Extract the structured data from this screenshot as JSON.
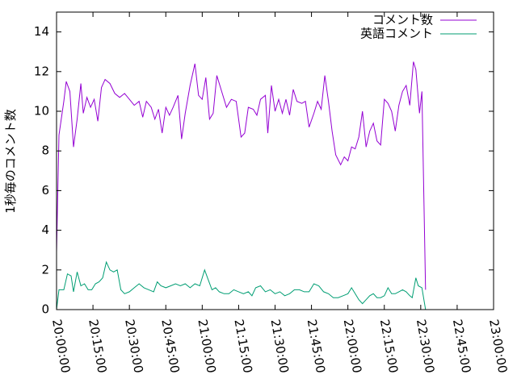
{
  "chart_data": {
    "type": "line",
    "ylabel": "1秒毎のコメント数",
    "xlabel": "",
    "ylim": [
      0,
      15
    ],
    "x_range": [
      "20:00:00",
      "23:00:00"
    ],
    "grid": false,
    "legend_position": "top-right",
    "y_ticks": [
      "0",
      "2",
      "4",
      "6",
      "8",
      "10",
      "12",
      "14"
    ],
    "x_ticks": [
      "20:00:00",
      "20:15:00",
      "20:30:00",
      "20:45:00",
      "21:00:00",
      "21:15:00",
      "21:30:00",
      "21:45:00",
      "22:00:00",
      "22:15:00",
      "22:30:00",
      "22:45:00",
      "23:00:00"
    ],
    "series": [
      {
        "name": "コメント数",
        "color": "#9400d3",
        "points": [
          [
            "20:00:00",
            2.9
          ],
          [
            "20:01:00",
            8.8
          ],
          [
            "20:03:00",
            10.5
          ],
          [
            "20:04:00",
            11.5
          ],
          [
            "20:05:30",
            11.0
          ],
          [
            "20:07:00",
            8.2
          ],
          [
            "20:08:30",
            9.6
          ],
          [
            "20:10:00",
            11.4
          ],
          [
            "20:11:00",
            9.9
          ],
          [
            "20:12:30",
            10.7
          ],
          [
            "20:14:00",
            10.2
          ],
          [
            "20:15:30",
            10.6
          ],
          [
            "20:17:00",
            9.5
          ],
          [
            "20:18:30",
            11.2
          ],
          [
            "20:20:00",
            11.6
          ],
          [
            "20:22:00",
            11.4
          ],
          [
            "20:24:00",
            10.9
          ],
          [
            "20:26:00",
            10.7
          ],
          [
            "20:28:00",
            10.9
          ],
          [
            "20:30:00",
            10.6
          ],
          [
            "20:32:00",
            10.3
          ],
          [
            "20:34:00",
            10.5
          ],
          [
            "20:35:30",
            9.7
          ],
          [
            "20:37:00",
            10.5
          ],
          [
            "20:39:00",
            10.2
          ],
          [
            "20:40:30",
            9.6
          ],
          [
            "20:42:00",
            10.1
          ],
          [
            "20:43:30",
            8.9
          ],
          [
            "20:45:00",
            10.2
          ],
          [
            "20:46:30",
            9.8
          ],
          [
            "20:48:00",
            10.2
          ],
          [
            "20:50:00",
            10.8
          ],
          [
            "20:51:30",
            8.6
          ],
          [
            "20:53:00",
            9.9
          ],
          [
            "20:55:00",
            11.3
          ],
          [
            "20:57:00",
            12.4
          ],
          [
            "20:58:30",
            10.8
          ],
          [
            "21:00:00",
            10.6
          ],
          [
            "21:01:30",
            11.7
          ],
          [
            "21:03:00",
            9.6
          ],
          [
            "21:04:30",
            9.9
          ],
          [
            "21:06:00",
            11.8
          ],
          [
            "21:08:00",
            11.0
          ],
          [
            "21:10:00",
            10.2
          ],
          [
            "21:12:00",
            10.6
          ],
          [
            "21:14:00",
            10.5
          ],
          [
            "21:16:00",
            8.7
          ],
          [
            "21:17:30",
            8.9
          ],
          [
            "21:19:00",
            10.2
          ],
          [
            "21:21:00",
            10.1
          ],
          [
            "21:22:30",
            9.8
          ],
          [
            "21:24:00",
            10.6
          ],
          [
            "21:26:00",
            10.8
          ],
          [
            "21:27:00",
            8.9
          ],
          [
            "21:28:30",
            11.3
          ],
          [
            "21:30:00",
            10.0
          ],
          [
            "21:31:30",
            10.6
          ],
          [
            "21:33:00",
            9.9
          ],
          [
            "21:34:30",
            10.6
          ],
          [
            "21:36:00",
            9.8
          ],
          [
            "21:37:30",
            11.1
          ],
          [
            "21:39:00",
            10.5
          ],
          [
            "21:41:00",
            10.4
          ],
          [
            "21:42:30",
            10.5
          ],
          [
            "21:44:00",
            9.2
          ],
          [
            "21:46:00",
            9.9
          ],
          [
            "21:47:30",
            10.5
          ],
          [
            "21:49:00",
            10.1
          ],
          [
            "21:50:30",
            11.8
          ],
          [
            "21:52:00",
            10.5
          ],
          [
            "21:53:30",
            9.0
          ],
          [
            "21:55:00",
            7.8
          ],
          [
            "21:57:00",
            7.3
          ],
          [
            "21:58:30",
            7.7
          ],
          [
            "22:00:00",
            7.5
          ],
          [
            "22:01:30",
            8.2
          ],
          [
            "22:03:00",
            8.1
          ],
          [
            "22:04:30",
            8.7
          ],
          [
            "22:06:00",
            10.0
          ],
          [
            "22:07:30",
            8.2
          ],
          [
            "22:09:00",
            9.0
          ],
          [
            "22:10:30",
            9.4
          ],
          [
            "22:12:00",
            8.5
          ],
          [
            "22:13:30",
            8.3
          ],
          [
            "22:15:00",
            10.6
          ],
          [
            "22:16:30",
            10.4
          ],
          [
            "22:18:00",
            10.0
          ],
          [
            "22:19:30",
            9.0
          ],
          [
            "22:21:00",
            10.3
          ],
          [
            "22:22:30",
            11.0
          ],
          [
            "22:24:00",
            11.3
          ],
          [
            "22:25:30",
            10.3
          ],
          [
            "22:27:00",
            12.5
          ],
          [
            "22:28:00",
            12.1
          ],
          [
            "22:29:30",
            9.9
          ],
          [
            "22:30:30",
            11.0
          ],
          [
            "22:32:00",
            1.0
          ]
        ]
      },
      {
        "name": "英語コメント",
        "color": "#009e73",
        "points": [
          [
            "20:00:00",
            0.0
          ],
          [
            "20:01:00",
            1.0
          ],
          [
            "20:03:00",
            1.0
          ],
          [
            "20:04:30",
            1.8
          ],
          [
            "20:06:00",
            1.7
          ],
          [
            "20:07:00",
            0.9
          ],
          [
            "20:08:30",
            1.9
          ],
          [
            "20:10:00",
            1.2
          ],
          [
            "20:11:30",
            1.3
          ],
          [
            "20:13:00",
            1.0
          ],
          [
            "20:14:30",
            1.0
          ],
          [
            "20:16:00",
            1.3
          ],
          [
            "20:17:30",
            1.4
          ],
          [
            "20:19:00",
            1.6
          ],
          [
            "20:20:30",
            2.4
          ],
          [
            "20:22:00",
            2.0
          ],
          [
            "20:23:30",
            1.9
          ],
          [
            "20:25:00",
            2.0
          ],
          [
            "20:26:30",
            1.0
          ],
          [
            "20:28:00",
            0.8
          ],
          [
            "20:30:00",
            0.9
          ],
          [
            "20:32:00",
            1.1
          ],
          [
            "20:34:00",
            1.3
          ],
          [
            "20:36:00",
            1.1
          ],
          [
            "20:38:00",
            1.0
          ],
          [
            "20:40:00",
            0.9
          ],
          [
            "20:41:30",
            1.4
          ],
          [
            "20:43:00",
            1.2
          ],
          [
            "20:45:00",
            1.1
          ],
          [
            "20:47:00",
            1.2
          ],
          [
            "20:49:00",
            1.3
          ],
          [
            "20:51:00",
            1.2
          ],
          [
            "20:53:00",
            1.3
          ],
          [
            "20:55:00",
            1.1
          ],
          [
            "20:57:00",
            1.3
          ],
          [
            "20:59:00",
            1.2
          ],
          [
            "21:01:00",
            2.0
          ],
          [
            "21:02:30",
            1.5
          ],
          [
            "21:04:00",
            1.0
          ],
          [
            "21:05:30",
            1.1
          ],
          [
            "21:07:00",
            0.9
          ],
          [
            "21:09:00",
            0.8
          ],
          [
            "21:11:00",
            0.8
          ],
          [
            "21:13:00",
            1.0
          ],
          [
            "21:15:00",
            0.9
          ],
          [
            "21:17:00",
            0.8
          ],
          [
            "21:19:00",
            0.9
          ],
          [
            "21:20:30",
            0.7
          ],
          [
            "21:22:00",
            1.1
          ],
          [
            "21:24:00",
            1.2
          ],
          [
            "21:26:00",
            0.9
          ],
          [
            "21:28:00",
            1.0
          ],
          [
            "21:30:00",
            0.8
          ],
          [
            "21:32:00",
            0.9
          ],
          [
            "21:34:00",
            0.7
          ],
          [
            "21:36:00",
            0.8
          ],
          [
            "21:38:00",
            1.0
          ],
          [
            "21:40:00",
            1.0
          ],
          [
            "21:42:00",
            0.9
          ],
          [
            "21:44:00",
            0.9
          ],
          [
            "21:46:00",
            1.3
          ],
          [
            "21:48:00",
            1.2
          ],
          [
            "21:50:00",
            0.9
          ],
          [
            "21:52:00",
            0.8
          ],
          [
            "21:54:00",
            0.6
          ],
          [
            "21:56:00",
            0.6
          ],
          [
            "21:58:00",
            0.7
          ],
          [
            "22:00:00",
            0.8
          ],
          [
            "22:01:30",
            1.1
          ],
          [
            "22:03:00",
            0.8
          ],
          [
            "22:04:30",
            0.5
          ],
          [
            "22:06:00",
            0.3
          ],
          [
            "22:07:30",
            0.5
          ],
          [
            "22:09:00",
            0.7
          ],
          [
            "22:10:30",
            0.8
          ],
          [
            "22:12:00",
            0.6
          ],
          [
            "22:13:30",
            0.6
          ],
          [
            "22:15:00",
            0.7
          ],
          [
            "22:16:30",
            1.1
          ],
          [
            "22:18:00",
            0.8
          ],
          [
            "22:19:30",
            0.8
          ],
          [
            "22:21:00",
            0.9
          ],
          [
            "22:22:30",
            1.0
          ],
          [
            "22:24:00",
            0.9
          ],
          [
            "22:25:30",
            0.7
          ],
          [
            "22:26:30",
            0.6
          ],
          [
            "22:28:00",
            1.6
          ],
          [
            "22:29:00",
            1.2
          ],
          [
            "22:30:30",
            1.1
          ],
          [
            "22:32:00",
            0.0
          ]
        ]
      }
    ]
  }
}
